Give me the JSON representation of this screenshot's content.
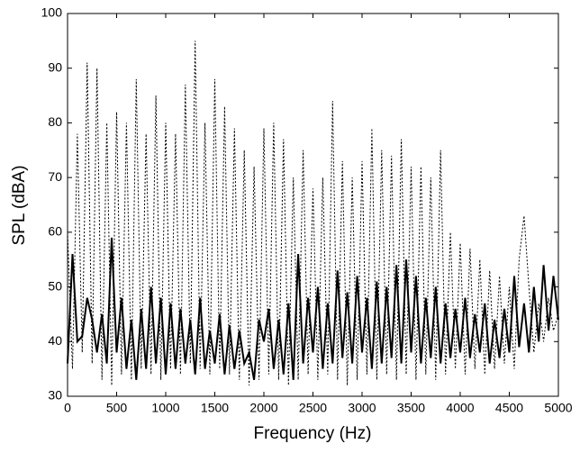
{
  "chart_data": {
    "type": "line",
    "xlabel": "Frequency (Hz)",
    "ylabel": "SPL (dBA)",
    "x": [
      0,
      50,
      100,
      150,
      200,
      250,
      300,
      350,
      400,
      450,
      500,
      550,
      600,
      650,
      700,
      750,
      800,
      850,
      900,
      950,
      1000,
      1050,
      1100,
      1150,
      1200,
      1250,
      1300,
      1350,
      1400,
      1450,
      1500,
      1550,
      1600,
      1650,
      1700,
      1750,
      1800,
      1850,
      1900,
      1950,
      2000,
      2050,
      2100,
      2150,
      2200,
      2250,
      2300,
      2350,
      2400,
      2450,
      2500,
      2550,
      2600,
      2650,
      2700,
      2750,
      2800,
      2850,
      2900,
      2950,
      3000,
      3050,
      3100,
      3150,
      3200,
      3250,
      3300,
      3350,
      3400,
      3450,
      3500,
      3550,
      3600,
      3650,
      3700,
      3750,
      3800,
      3850,
      3900,
      3950,
      4000,
      4050,
      4100,
      4150,
      4200,
      4250,
      4300,
      4350,
      4400,
      4450,
      4500,
      4550,
      4600,
      4650,
      4700,
      4750,
      4800,
      4850,
      4900,
      4950,
      5000
    ],
    "series": [
      {
        "color": "#000000",
        "dashed": true,
        "values": [
          60,
          35,
          78,
          38,
          91,
          36,
          90,
          33,
          80,
          32,
          82,
          34,
          80,
          33,
          88,
          35,
          78,
          34,
          85,
          33,
          80,
          35,
          78,
          34,
          87,
          36,
          95,
          35,
          80,
          34,
          88,
          35,
          83,
          34,
          79,
          33,
          75,
          32,
          72,
          33,
          79,
          34,
          80,
          33,
          77,
          32,
          70,
          33,
          75,
          34,
          68,
          33,
          70,
          34,
          84,
          33,
          73,
          32,
          70,
          33,
          73,
          34,
          79,
          33,
          75,
          34,
          74,
          33,
          77,
          34,
          72,
          33,
          72,
          34,
          70,
          33,
          75,
          34,
          60,
          35,
          58,
          34,
          57,
          35,
          55,
          34,
          53,
          35,
          52,
          36,
          50,
          35,
          55,
          63,
          50,
          38,
          47,
          40,
          48,
          42,
          45
        ]
      },
      {
        "color": "#000000",
        "dashed": false,
        "values": [
          36,
          56,
          40,
          41,
          48,
          44,
          38,
          45,
          36,
          59,
          38,
          48,
          35,
          44,
          33,
          46,
          35,
          50,
          36,
          48,
          34,
          47,
          35,
          46,
          36,
          44,
          34,
          48,
          35,
          42,
          36,
          45,
          34,
          43,
          35,
          42,
          36,
          38,
          33,
          44,
          40,
          46,
          35,
          44,
          34,
          47,
          33,
          56,
          36,
          48,
          38,
          50,
          35,
          47,
          36,
          53,
          37,
          49,
          36,
          52,
          38,
          48,
          35,
          51,
          36,
          50,
          37,
          54,
          36,
          55,
          38,
          52,
          36,
          48,
          37,
          50,
          36,
          47,
          37,
          46,
          38,
          48,
          37,
          45,
          38,
          47,
          36,
          44,
          37,
          46,
          38,
          52,
          39,
          47,
          38,
          50,
          40,
          54,
          42,
          52,
          44
        ]
      }
    ],
    "xlim": [
      0,
      5000
    ],
    "xticks": [
      0,
      500,
      1000,
      1500,
      2000,
      2500,
      3000,
      3500,
      4000,
      4500,
      5000
    ],
    "ylim": [
      30,
      100
    ],
    "yticks": [
      30,
      40,
      50,
      60,
      70,
      80,
      90,
      100
    ]
  }
}
